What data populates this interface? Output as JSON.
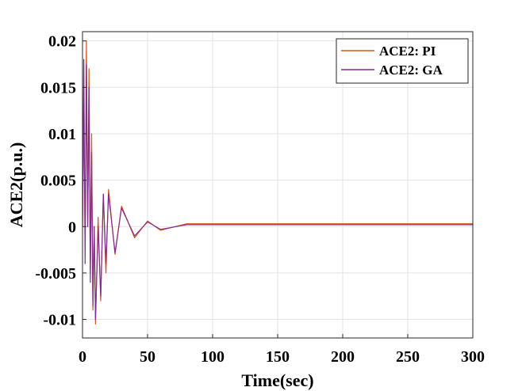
{
  "chart_data": {
    "type": "line",
    "xlabel": "Time(sec)",
    "ylabel": "ACE2(p.u.)",
    "xlim": [
      0,
      300
    ],
    "ylim": [
      -0.012,
      0.021
    ],
    "grid": true,
    "legend_position": "top-right",
    "x_ticks": [
      0,
      50,
      100,
      150,
      200,
      250,
      300
    ],
    "x_tick_labels": [
      "0",
      "50",
      "100",
      "150",
      "200",
      "250",
      "300"
    ],
    "y_ticks": [
      -0.01,
      -0.005,
      0,
      0.005,
      0.01,
      0.015,
      0.02
    ],
    "y_tick_labels": [
      "-0.01",
      "-0.005",
      "0",
      "0.005",
      "0.01",
      "0.015",
      "0.02"
    ],
    "series": [
      {
        "name": "ACE2: PI",
        "color": "#D95319",
        "x": [
          0,
          1,
          2,
          3,
          4,
          5,
          6,
          7,
          8,
          9,
          10,
          12,
          14,
          16,
          18,
          20,
          25,
          30,
          40,
          50,
          60,
          80,
          100,
          150,
          200,
          250,
          300
        ],
        "y": [
          0,
          0.012,
          -0.002,
          0.02,
          0.0,
          0.017,
          -0.005,
          0.01,
          -0.009,
          0.0,
          -0.0105,
          0.001,
          -0.008,
          0.0035,
          -0.005,
          0.004,
          -0.003,
          0.0022,
          -0.0012,
          0.0006,
          -0.0004,
          0.0003,
          0.0003,
          0.0003,
          0.0003,
          0.0003,
          0.0003
        ]
      },
      {
        "name": "ACE2: GA",
        "color": "#7E2F8E",
        "x": [
          0,
          1,
          2,
          3,
          4,
          5,
          6,
          7,
          8,
          9,
          10,
          12,
          14,
          16,
          18,
          20,
          25,
          30,
          40,
          50,
          60,
          80,
          100,
          150,
          200,
          250,
          300
        ],
        "y": [
          0,
          0.018,
          -0.004,
          0.0175,
          0.0,
          0.015,
          -0.006,
          0.008,
          -0.0085,
          0.0,
          -0.01,
          0.0,
          -0.0075,
          0.0035,
          -0.004,
          0.0035,
          -0.0028,
          0.002,
          -0.001,
          0.0005,
          -0.0003,
          0.0002,
          0.0002,
          0.0002,
          0.0002,
          0.0002,
          0.0002
        ]
      }
    ]
  }
}
